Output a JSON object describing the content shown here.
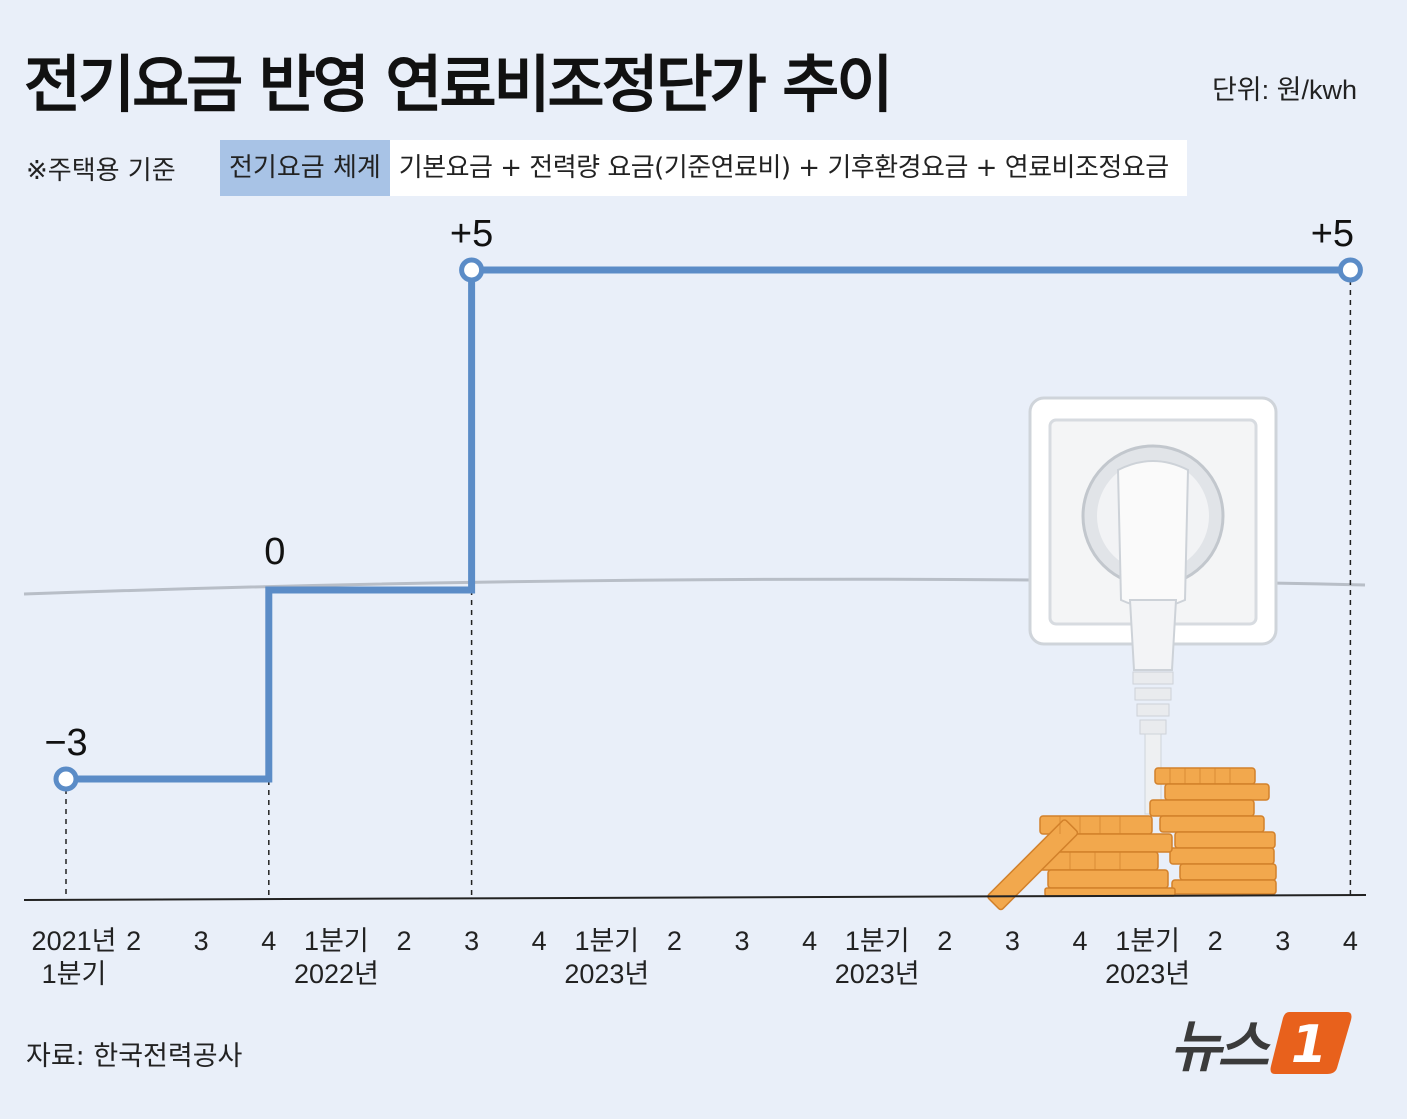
{
  "title": "전기요금 반영 연료비조정단가 추이",
  "unit": "단위: 원/kwh",
  "note": "※주택용 기준",
  "formula": {
    "label": "전기요금 체계",
    "text": "기본요금 + 전력량 요금(기준연료비) + 기후환경요금 + 연료비조정요금"
  },
  "source": "자료: 한국전력공사",
  "logo": {
    "text": "뉴스",
    "mark": "1",
    "accent": "#e8611c"
  },
  "colors": {
    "line": "#5b8cc7",
    "background": "#e9eff9",
    "axis": "#222222",
    "zero_line": "#b8bec7"
  },
  "chart_data": {
    "type": "line",
    "step": true,
    "categories": [
      {
        "top": "2021년",
        "bottom": "1분기"
      },
      {
        "top": "2"
      },
      {
        "top": "3"
      },
      {
        "top": "4"
      },
      {
        "top": "1분기",
        "bottom": "2022년"
      },
      {
        "top": "2"
      },
      {
        "top": "3"
      },
      {
        "top": "4"
      },
      {
        "top": "1분기",
        "bottom": "2023년"
      },
      {
        "top": "2"
      },
      {
        "top": "3"
      },
      {
        "top": "4"
      },
      {
        "top": "1분기",
        "bottom": "2023년"
      },
      {
        "top": "2"
      },
      {
        "top": "3"
      },
      {
        "top": "4"
      },
      {
        "top": "1분기",
        "bottom": "2023년"
      },
      {
        "top": "2"
      },
      {
        "top": "3"
      },
      {
        "top": "4"
      }
    ],
    "series": [
      {
        "values": [
          -3,
          -3,
          -3,
          0,
          0,
          0,
          5,
          5,
          5,
          5,
          5,
          5,
          5,
          5,
          5,
          5,
          5,
          5,
          5,
          5
        ]
      }
    ],
    "labeled_points": [
      {
        "index": 0,
        "label": "−3"
      },
      {
        "index": 3,
        "label": "0"
      },
      {
        "index": 6,
        "label": "+5"
      },
      {
        "index": 19,
        "label": "+5"
      }
    ],
    "ylim": [
      -3,
      5
    ]
  }
}
